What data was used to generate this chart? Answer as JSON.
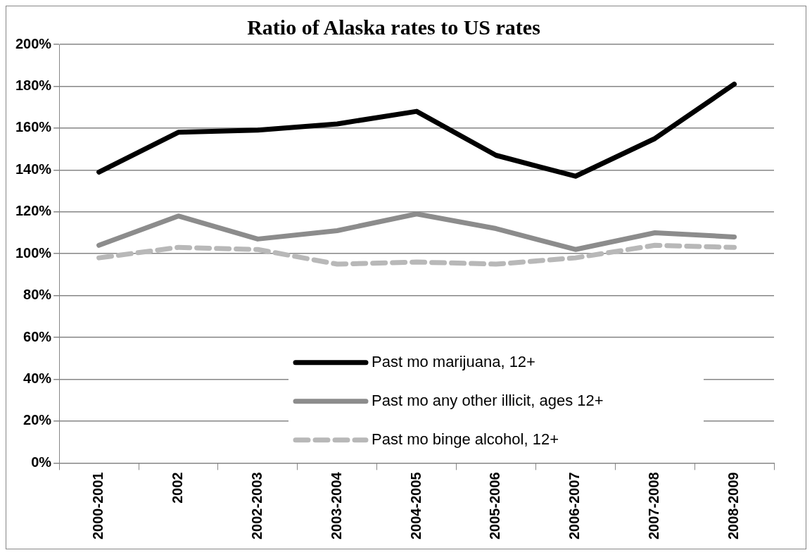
{
  "chart_data": {
    "type": "line",
    "title": "Ratio of Alaska rates to US rates",
    "categories": [
      "2000-2001",
      "2002",
      "2002-2003",
      "2003-2004",
      "2004-2005",
      "2005-2006",
      "2006-2007",
      "2007-2008",
      "2008-2009"
    ],
    "series": [
      {
        "name": "Past mo marijuana, 12+",
        "color": "#000000",
        "line_style": "solid",
        "values": [
          139,
          158,
          159,
          162,
          168,
          147,
          137,
          155,
          181
        ]
      },
      {
        "name": "Past mo any other illicit, ages 12+",
        "color": "#8c8c8c",
        "line_style": "solid",
        "values": [
          104,
          118,
          107,
          111,
          119,
          112,
          102,
          110,
          108
        ]
      },
      {
        "name": "Past mo binge alcohol, 12+",
        "color": "#b8b8b8",
        "line_style": "dashed",
        "values": [
          98,
          103,
          102,
          95,
          96,
          95,
          98,
          104,
          103
        ]
      }
    ],
    "ylim": [
      0,
      200
    ],
    "yticks": [
      {
        "value": 0,
        "label": "0%"
      },
      {
        "value": 20,
        "label": "20%"
      },
      {
        "value": 40,
        "label": "40%"
      },
      {
        "value": 60,
        "label": "60%"
      },
      {
        "value": 80,
        "label": "80%"
      },
      {
        "value": 100,
        "label": "100%"
      },
      {
        "value": 120,
        "label": "120%"
      },
      {
        "value": 140,
        "label": "140%"
      },
      {
        "value": 160,
        "label": "160%"
      },
      {
        "value": 180,
        "label": "180%"
      },
      {
        "value": 200,
        "label": "200%"
      }
    ],
    "grid": "y",
    "legend": "bottom right",
    "marker": "none"
  }
}
